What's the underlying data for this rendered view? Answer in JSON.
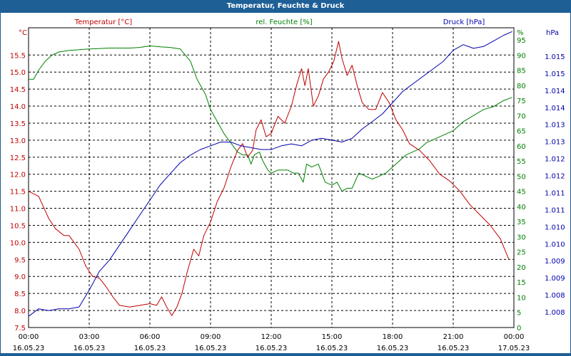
{
  "window": {
    "title": "Temperatur, Feuchte & Druck"
  },
  "chart_data": {
    "type": "line",
    "title": "Temperatur, Feuchte & Druck",
    "grid": true,
    "x_range": [
      "2023-05-16 00:00",
      "2023-05-17 00:00"
    ],
    "x_ticks": [
      {
        "time": "00:00",
        "date": "16.05.23"
      },
      {
        "time": "03:00",
        "date": "16.05.23"
      },
      {
        "time": "06:00",
        "date": "16.05.23"
      },
      {
        "time": "09:00",
        "date": "16.05.23"
      },
      {
        "time": "12:00",
        "date": "16.05.23"
      },
      {
        "time": "15:00",
        "date": "16.05.23"
      },
      {
        "time": "18:00",
        "date": "16.05.23"
      },
      {
        "time": "21:00",
        "date": "16.05.23"
      },
      {
        "time": "00:00",
        "date": "17.05.23"
      }
    ],
    "axes": {
      "temp": {
        "label": "Temperatur [°C]",
        "unit": "°C",
        "color": "#c00000",
        "range": [
          7.5,
          16.3
        ],
        "ticks": [
          "7.5",
          "8.0",
          "8.5",
          "9.0",
          "9.5",
          "10.0",
          "10.5",
          "11.0",
          "11.5",
          "12.0",
          "12.5",
          "13.0",
          "13.5",
          "14.0",
          "14.5",
          "15.0",
          "15.5"
        ]
      },
      "humidity": {
        "label": "rel. Feuchte [%]",
        "unit": "%",
        "color": "#008000",
        "range": [
          0,
          99
        ],
        "ticks": [
          "0",
          "5",
          "10",
          "15",
          "20",
          "25",
          "30",
          "35",
          "40",
          "45",
          "50",
          "55",
          "60",
          "65",
          "70",
          "75",
          "80",
          "85",
          "90",
          "95"
        ]
      },
      "pressure": {
        "label": "Druck [hPa]",
        "unit": "hPa",
        "color": "#0000aa",
        "range": [
          1007.5,
          1015.5
        ],
        "ticks": [
          "1.008",
          "1.008",
          "1.009",
          "1.009",
          "1.010",
          "1.010",
          "1.011",
          "1.011",
          "1.012",
          "1.012",
          "1.013",
          "1.013",
          "1.014",
          "1.014",
          "1.015",
          "1.015"
        ]
      }
    },
    "series": [
      {
        "name": "Temperatur [°C]",
        "axis": "temp",
        "color": "#c00000",
        "points": [
          [
            "00:00",
            11.5
          ],
          [
            "00:30",
            11.35
          ],
          [
            "01:00",
            10.7
          ],
          [
            "01:20",
            10.4
          ],
          [
            "01:45",
            10.2
          ],
          [
            "02:00",
            10.2
          ],
          [
            "02:30",
            9.8
          ],
          [
            "02:50",
            9.3
          ],
          [
            "03:10",
            9.0
          ],
          [
            "03:30",
            8.95
          ],
          [
            "03:50",
            8.7
          ],
          [
            "04:10",
            8.4
          ],
          [
            "04:30",
            8.15
          ],
          [
            "05:00",
            8.1
          ],
          [
            "05:30",
            8.15
          ],
          [
            "06:00",
            8.2
          ],
          [
            "06:20",
            8.15
          ],
          [
            "06:35",
            8.4
          ],
          [
            "06:50",
            8.1
          ],
          [
            "07:05",
            7.85
          ],
          [
            "07:20",
            8.1
          ],
          [
            "07:35",
            8.5
          ],
          [
            "07:50",
            9.1
          ],
          [
            "08:10",
            9.8
          ],
          [
            "08:25",
            9.6
          ],
          [
            "08:40",
            10.2
          ],
          [
            "09:00",
            10.6
          ],
          [
            "09:20",
            11.2
          ],
          [
            "09:40",
            11.6
          ],
          [
            "10:00",
            12.2
          ],
          [
            "10:20",
            12.7
          ],
          [
            "10:35",
            12.9
          ],
          [
            "10:50",
            12.5
          ],
          [
            "11:05",
            12.7
          ],
          [
            "11:15",
            13.3
          ],
          [
            "11:30",
            13.6
          ],
          [
            "11:45",
            13.1
          ],
          [
            "12:00",
            13.2
          ],
          [
            "12:20",
            13.7
          ],
          [
            "12:40",
            13.5
          ],
          [
            "13:00",
            14.0
          ],
          [
            "13:15",
            14.6
          ],
          [
            "13:30",
            15.1
          ],
          [
            "13:40",
            14.6
          ],
          [
            "13:50",
            15.1
          ],
          [
            "14:05",
            14.0
          ],
          [
            "14:20",
            14.3
          ],
          [
            "14:35",
            14.8
          ],
          [
            "14:50",
            15.0
          ],
          [
            "15:05",
            15.3
          ],
          [
            "15:20",
            15.9
          ],
          [
            "15:30",
            15.4
          ],
          [
            "15:45",
            14.9
          ],
          [
            "16:00",
            15.2
          ],
          [
            "16:15",
            14.6
          ],
          [
            "16:30",
            14.1
          ],
          [
            "16:50",
            13.9
          ],
          [
            "17:10",
            13.9
          ],
          [
            "17:30",
            14.4
          ],
          [
            "17:50",
            14.1
          ],
          [
            "18:10",
            13.6
          ],
          [
            "18:30",
            13.3
          ],
          [
            "18:50",
            12.9
          ],
          [
            "19:20",
            12.7
          ],
          [
            "19:50",
            12.4
          ],
          [
            "20:20",
            12.0
          ],
          [
            "20:50",
            11.8
          ],
          [
            "21:20",
            11.5
          ],
          [
            "21:50",
            11.1
          ],
          [
            "22:20",
            10.8
          ],
          [
            "22:50",
            10.5
          ],
          [
            "23:20",
            10.1
          ],
          [
            "23:45",
            9.5
          ]
        ]
      },
      {
        "name": "rel. Feuchte [%]",
        "axis": "humidity",
        "color": "#008000",
        "points": [
          [
            "00:00",
            82
          ],
          [
            "00:15",
            82
          ],
          [
            "00:30",
            85
          ],
          [
            "00:50",
            88
          ],
          [
            "01:10",
            90
          ],
          [
            "01:30",
            91
          ],
          [
            "02:00",
            91.5
          ],
          [
            "03:00",
            92
          ],
          [
            "04:00",
            92.3
          ],
          [
            "05:00",
            92.3
          ],
          [
            "05:30",
            92.5
          ],
          [
            "06:00",
            93
          ],
          [
            "06:30",
            92.7
          ],
          [
            "07:00",
            92.5
          ],
          [
            "07:30",
            92
          ],
          [
            "08:00",
            88
          ],
          [
            "08:20",
            82
          ],
          [
            "08:45",
            77
          ],
          [
            "09:00",
            72
          ],
          [
            "09:20",
            68
          ],
          [
            "09:40",
            64
          ],
          [
            "10:00",
            61
          ],
          [
            "10:20",
            58
          ],
          [
            "10:35",
            57
          ],
          [
            "10:50",
            57
          ],
          [
            "11:00",
            54
          ],
          [
            "11:10",
            57
          ],
          [
            "11:25",
            58
          ],
          [
            "11:35",
            55
          ],
          [
            "11:50",
            52
          ],
          [
            "12:00",
            51
          ],
          [
            "12:20",
            52
          ],
          [
            "12:50",
            52
          ],
          [
            "13:05",
            51
          ],
          [
            "13:20",
            51
          ],
          [
            "13:35",
            48
          ],
          [
            "13:45",
            54
          ],
          [
            "14:00",
            53
          ],
          [
            "14:20",
            54
          ],
          [
            "14:40",
            48
          ],
          [
            "15:00",
            47
          ],
          [
            "15:15",
            48
          ],
          [
            "15:30",
            45
          ],
          [
            "15:45",
            46
          ],
          [
            "16:00",
            46
          ],
          [
            "16:20",
            51
          ],
          [
            "16:40",
            50
          ],
          [
            "17:00",
            49
          ],
          [
            "17:20",
            50
          ],
          [
            "17:40",
            51
          ],
          [
            "18:00",
            53
          ],
          [
            "18:20",
            55
          ],
          [
            "18:40",
            57
          ],
          [
            "19:00",
            58
          ],
          [
            "19:20",
            59
          ],
          [
            "19:40",
            61
          ],
          [
            "20:00",
            62
          ],
          [
            "20:20",
            63
          ],
          [
            "20:40",
            64
          ],
          [
            "21:00",
            65
          ],
          [
            "21:30",
            68
          ],
          [
            "22:00",
            70
          ],
          [
            "22:30",
            72
          ],
          [
            "23:00",
            73
          ],
          [
            "23:30",
            75
          ],
          [
            "23:55",
            76
          ]
        ]
      },
      {
        "name": "Druck [hPa]",
        "axis": "pressure",
        "color": "#0000aa",
        "points": [
          [
            "00:00",
            1007.8
          ],
          [
            "00:30",
            1008.0
          ],
          [
            "01:00",
            1007.95
          ],
          [
            "01:30",
            1008.0
          ],
          [
            "02:00",
            1008.0
          ],
          [
            "02:30",
            1008.05
          ],
          [
            "03:00",
            1008.5
          ],
          [
            "03:30",
            1009.0
          ],
          [
            "04:00",
            1009.3
          ],
          [
            "04:30",
            1009.7
          ],
          [
            "05:00",
            1010.1
          ],
          [
            "05:30",
            1010.5
          ],
          [
            "06:00",
            1010.9
          ],
          [
            "06:30",
            1011.3
          ],
          [
            "07:00",
            1011.6
          ],
          [
            "07:30",
            1011.9
          ],
          [
            "08:00",
            1012.1
          ],
          [
            "08:30",
            1012.25
          ],
          [
            "09:00",
            1012.35
          ],
          [
            "09:30",
            1012.45
          ],
          [
            "10:00",
            1012.45
          ],
          [
            "10:30",
            1012.35
          ],
          [
            "11:00",
            1012.3
          ],
          [
            "11:30",
            1012.25
          ],
          [
            "12:00",
            1012.25
          ],
          [
            "12:30",
            1012.35
          ],
          [
            "13:00",
            1012.4
          ],
          [
            "13:30",
            1012.35
          ],
          [
            "14:00",
            1012.5
          ],
          [
            "14:30",
            1012.55
          ],
          [
            "15:00",
            1012.5
          ],
          [
            "15:30",
            1012.45
          ],
          [
            "16:00",
            1012.55
          ],
          [
            "16:30",
            1012.8
          ],
          [
            "17:00",
            1013.0
          ],
          [
            "17:30",
            1013.2
          ],
          [
            "18:00",
            1013.5
          ],
          [
            "18:30",
            1013.8
          ],
          [
            "19:00",
            1014.0
          ],
          [
            "19:30",
            1014.2
          ],
          [
            "20:00",
            1014.4
          ],
          [
            "20:30",
            1014.6
          ],
          [
            "21:00",
            1014.9
          ],
          [
            "21:30",
            1015.05
          ],
          [
            "22:00",
            1014.95
          ],
          [
            "22:30",
            1015.0
          ],
          [
            "23:00",
            1015.15
          ],
          [
            "23:30",
            1015.3
          ],
          [
            "23:55",
            1015.4
          ]
        ]
      }
    ]
  }
}
